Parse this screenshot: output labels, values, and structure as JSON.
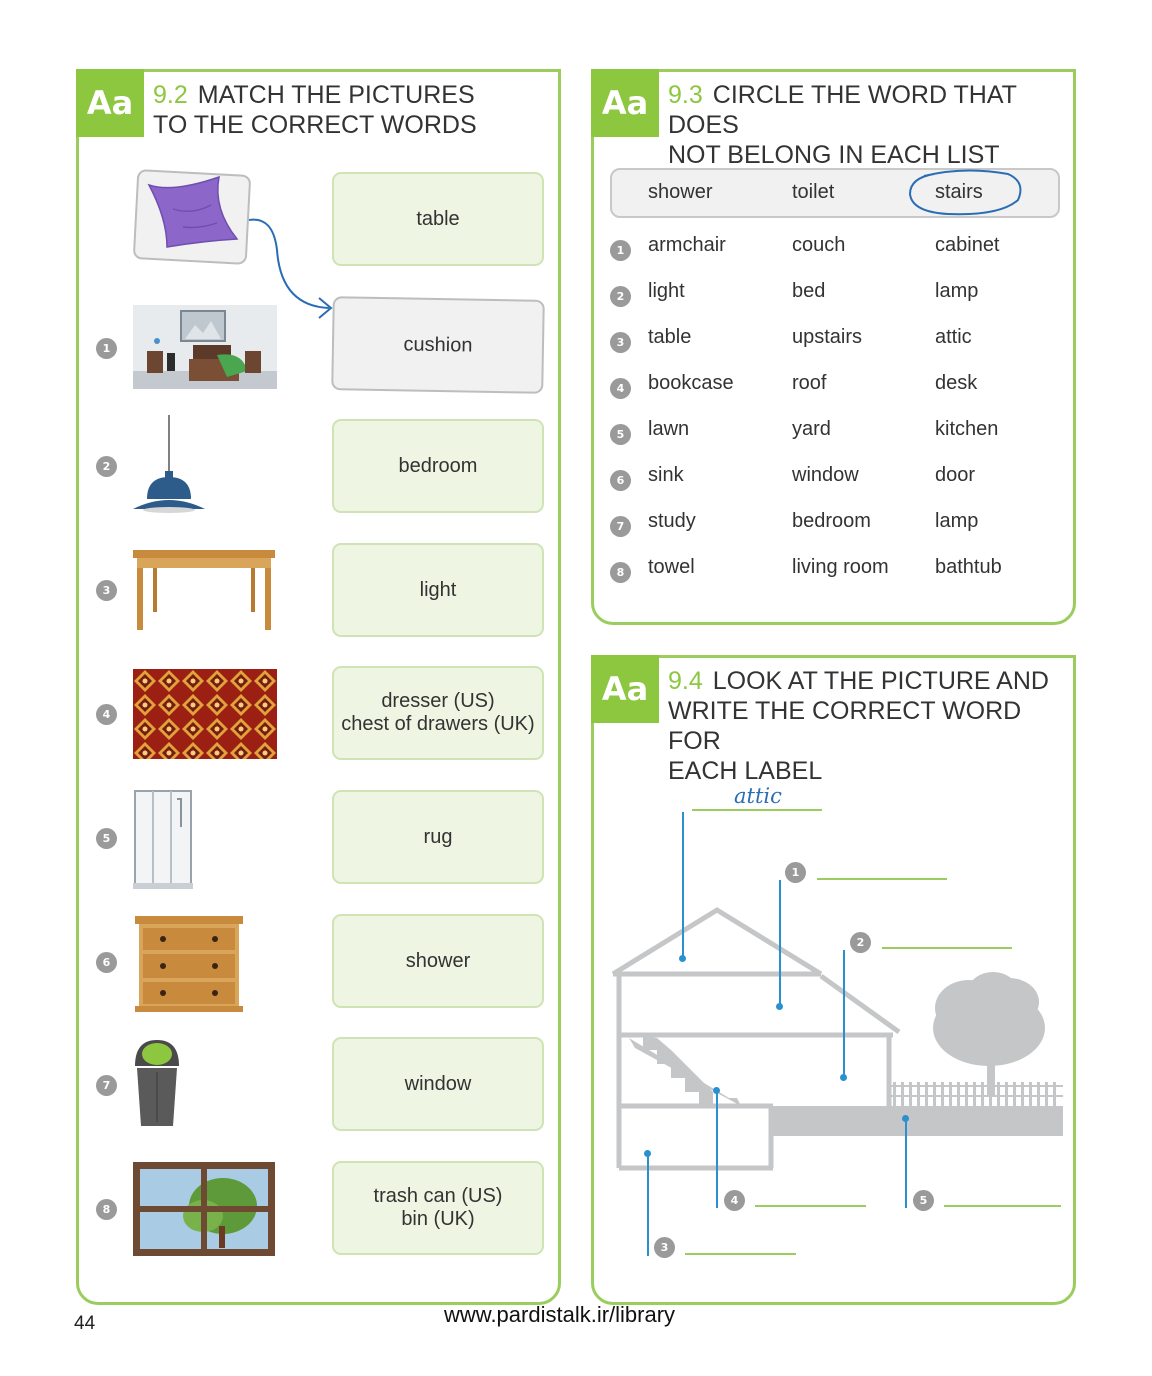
{
  "ex92": {
    "badge": "Aa",
    "number": "9.2",
    "title": "MATCH THE PICTURES\nTO THE CORRECT WORDS",
    "item_numbers": [
      "1",
      "2",
      "3",
      "4",
      "5",
      "6",
      "7",
      "8"
    ],
    "pictures": [
      "cushion",
      "bedroom",
      "light",
      "table",
      "rug",
      "shower",
      "dresser",
      "trash-can",
      "window"
    ],
    "words": [
      "table",
      "cushion",
      "bedroom",
      "light",
      "dresser (US)\nchest of drawers (UK)",
      "rug",
      "shower",
      "window",
      "trash can (US)\nbin (UK)"
    ],
    "example_selected_word": "cushion"
  },
  "ex93": {
    "badge": "Aa",
    "number": "9.3",
    "title": "CIRCLE THE WORD THAT DOES\nNOT BELONG IN EACH LIST",
    "example": [
      "shower",
      "toilet",
      "stairs"
    ],
    "example_circled": "stairs",
    "rows": [
      {
        "n": "1",
        "words": [
          "armchair",
          "couch",
          "cabinet"
        ]
      },
      {
        "n": "2",
        "words": [
          "light",
          "bed",
          "lamp"
        ]
      },
      {
        "n": "3",
        "words": [
          "table",
          "upstairs",
          "attic"
        ]
      },
      {
        "n": "4",
        "words": [
          "bookcase",
          "roof",
          "desk"
        ]
      },
      {
        "n": "5",
        "words": [
          "lawn",
          "yard",
          "kitchen"
        ]
      },
      {
        "n": "6",
        "words": [
          "sink",
          "window",
          "door"
        ]
      },
      {
        "n": "7",
        "words": [
          "study",
          "bedroom",
          "lamp"
        ]
      },
      {
        "n": "8",
        "words": [
          "towel",
          "living room",
          "bathtub"
        ]
      }
    ]
  },
  "ex94": {
    "badge": "Aa",
    "number": "9.4",
    "title": "LOOK AT THE PICTURE AND\nWRITE THE CORRECT WORD FOR\nEACH LABEL",
    "example_answer": "attic",
    "label_numbers": [
      "1",
      "2",
      "3",
      "4",
      "5"
    ]
  },
  "footer": {
    "page_number": "44",
    "url": "www.pardistalk.ir/library"
  },
  "colors": {
    "accent_green": "#8dc63f",
    "box_green": "#eef5e3",
    "handwriting_blue": "#2a6db5",
    "label_blue": "#2b90cf"
  }
}
